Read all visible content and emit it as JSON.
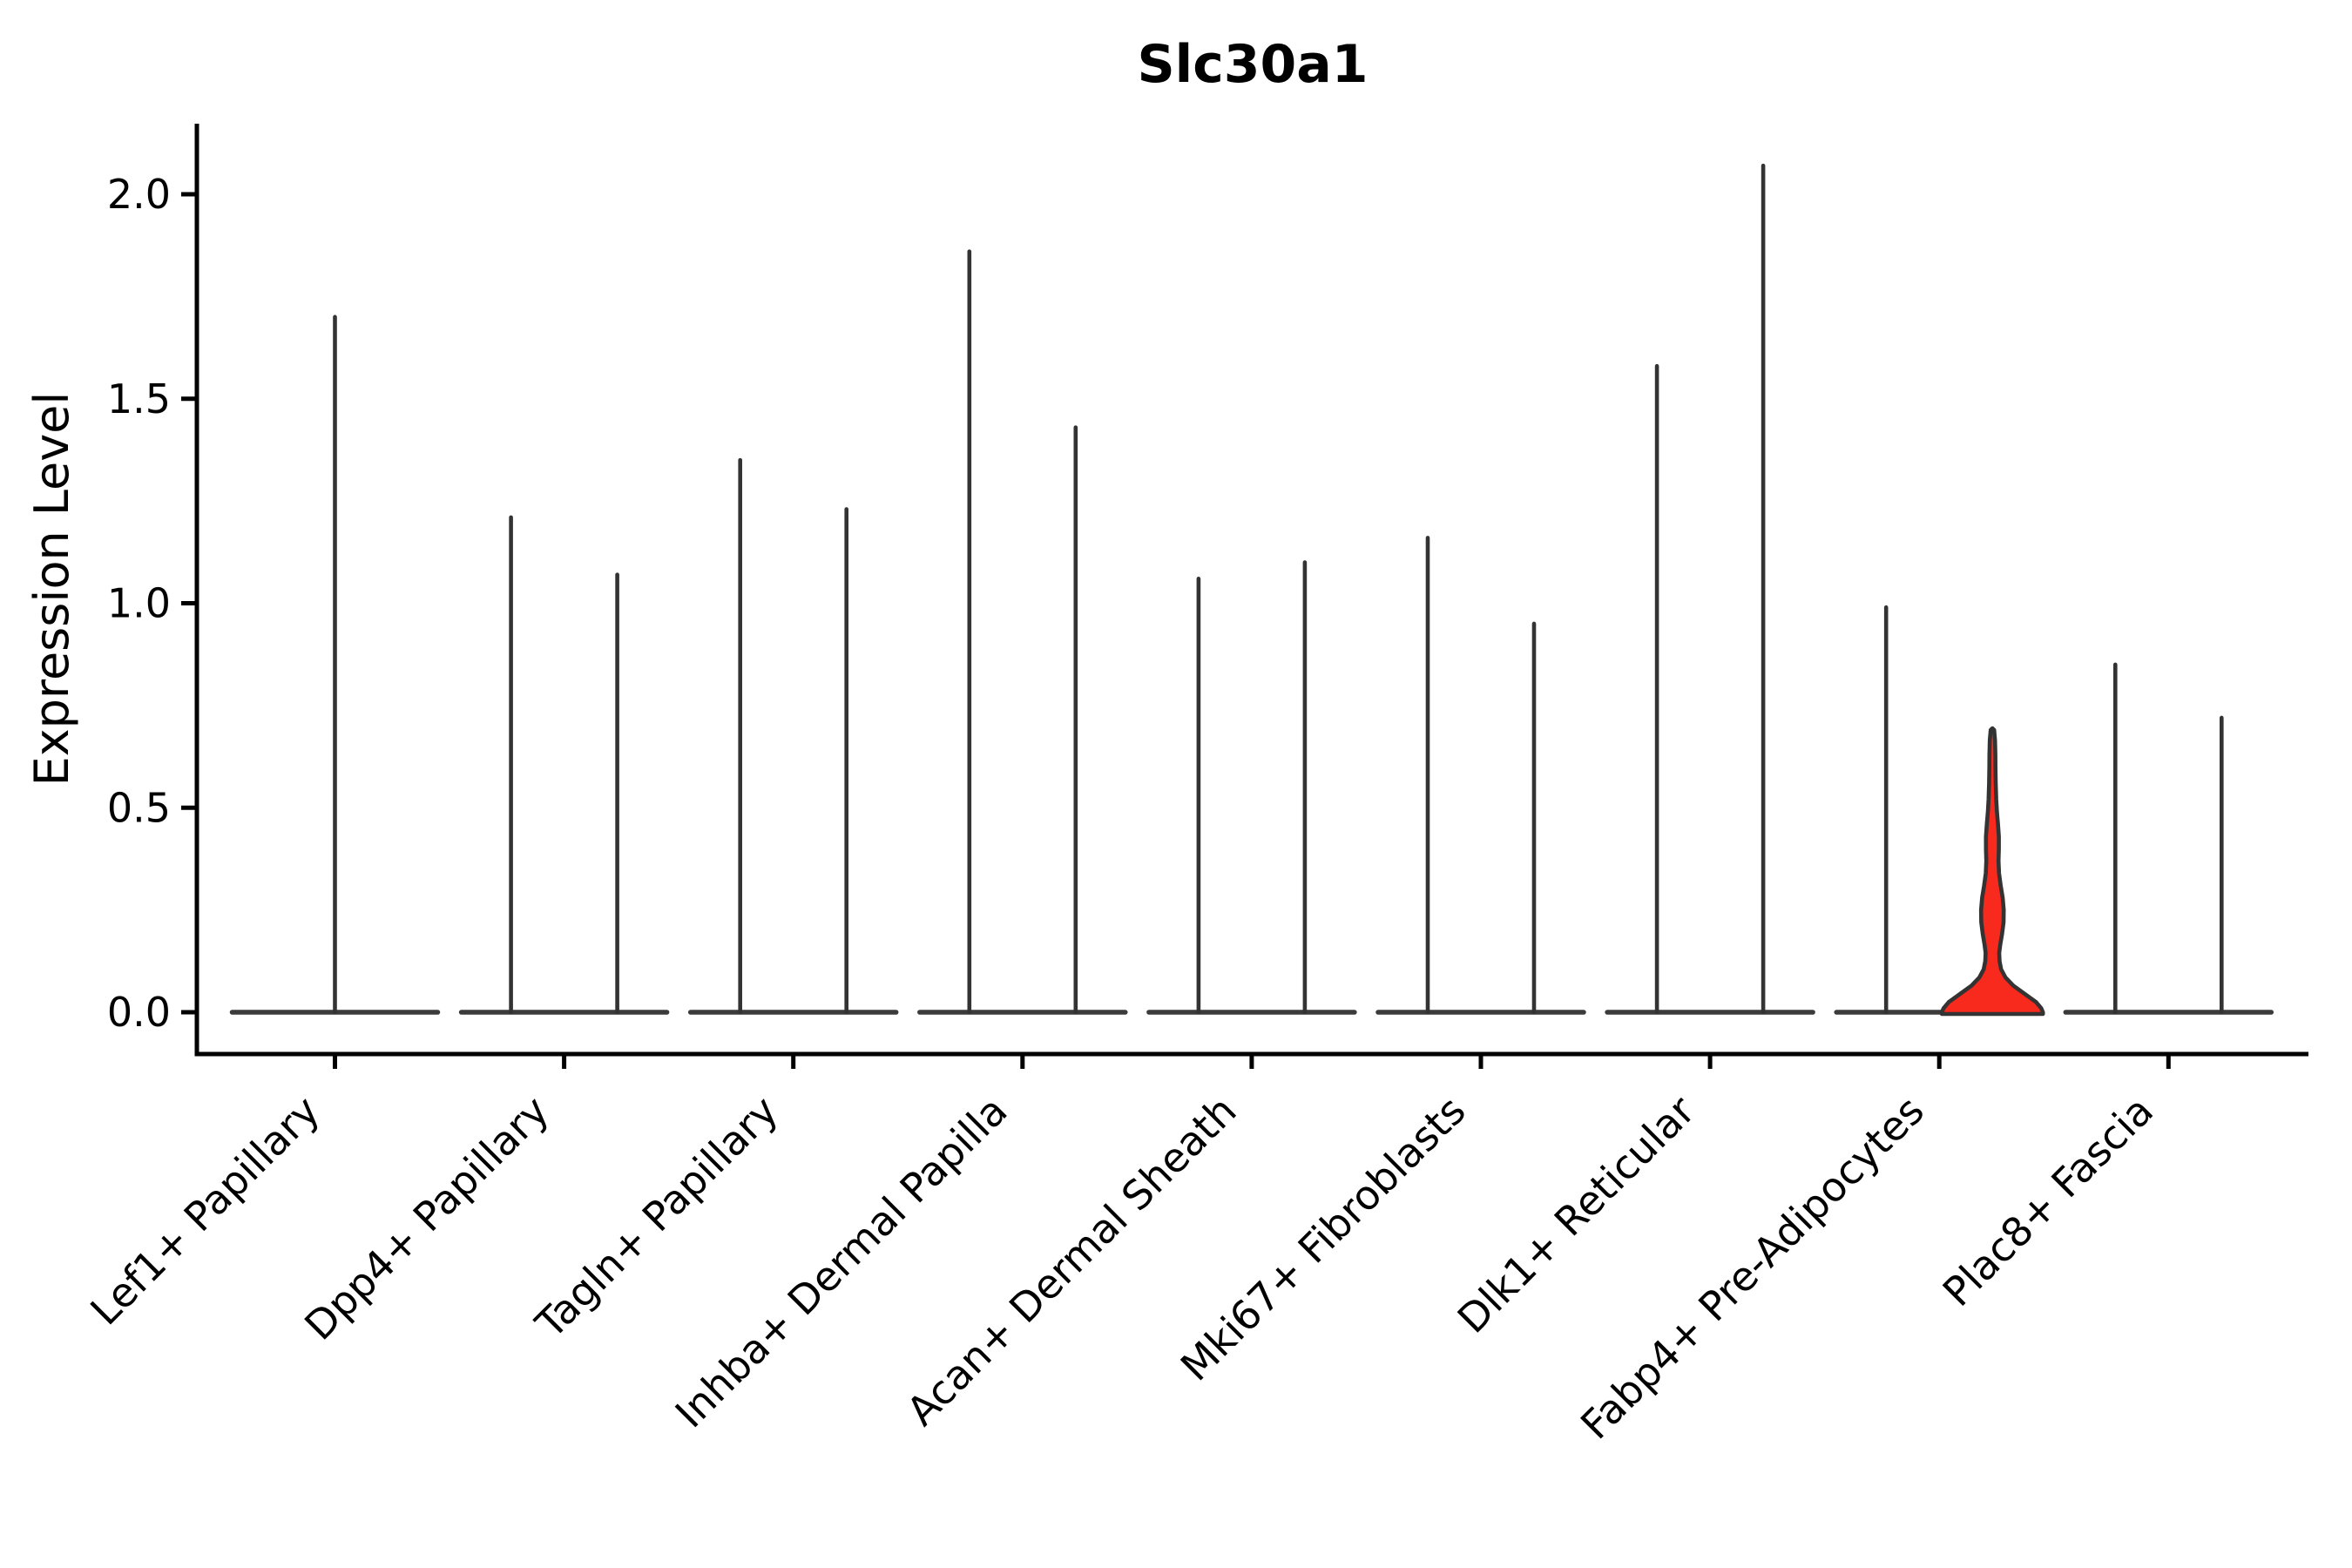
{
  "chart_data": {
    "type": "violin",
    "title": "Slc30a1",
    "ylabel": "Expression Level",
    "xlabel": "",
    "yticks": [
      "0.0",
      "0.5",
      "1.0",
      "1.5",
      "2.0"
    ],
    "ytick_values": [
      0.0,
      0.5,
      1.0,
      1.5,
      2.0
    ],
    "ylim": [
      -0.1,
      2.17
    ],
    "grid": false,
    "legend": "none",
    "colors": {
      "spike": "#333333",
      "baseline": "#3b3b3b",
      "axis": "#000000",
      "text": "#000000",
      "highlight_fill": "#F8291D",
      "highlight_outline": "#333333"
    },
    "categories": [
      {
        "label": "Lef1+ Papillary",
        "violins": [
          {
            "pos": "center",
            "peak": 1.7
          }
        ]
      },
      {
        "label": "Dpp4+ Papillary",
        "violins": [
          {
            "pos": "left",
            "peak": 1.21
          },
          {
            "pos": "right",
            "peak": 1.07
          }
        ]
      },
      {
        "label": "Tagln+ Papillary",
        "violins": [
          {
            "pos": "left",
            "peak": 1.35
          },
          {
            "pos": "right",
            "peak": 1.23
          }
        ]
      },
      {
        "label": "Inhba+ Dermal Papilla",
        "violins": [
          {
            "pos": "left",
            "peak": 1.86
          },
          {
            "pos": "right",
            "peak": 1.43
          }
        ]
      },
      {
        "label": "Acan+ Dermal Sheath",
        "violins": [
          {
            "pos": "left",
            "peak": 1.06
          },
          {
            "pos": "right",
            "peak": 1.1
          }
        ]
      },
      {
        "label": "Mki67+ Fibroblasts",
        "violins": [
          {
            "pos": "left",
            "peak": 1.16
          },
          {
            "pos": "right",
            "peak": 0.95
          }
        ]
      },
      {
        "label": "Dlk1+ Reticular",
        "violins": [
          {
            "pos": "left",
            "peak": 1.58
          },
          {
            "pos": "right",
            "peak": 2.07
          }
        ]
      },
      {
        "label": "Fabp4+ Pre-Adipocytes",
        "violins": [
          {
            "pos": "left",
            "peak": 0.99
          },
          {
            "pos": "right",
            "peak": 0.69,
            "filled": true,
            "profile": [
              [
                0.69,
                2.0
              ],
              [
                0.665,
                3.0
              ],
              [
                0.63,
                3.4
              ],
              [
                0.6,
                3.5
              ],
              [
                0.56,
                3.8
              ],
              [
                0.52,
                4.4
              ],
              [
                0.49,
                5.2
              ],
              [
                0.46,
                6.4
              ],
              [
                0.43,
                7.4
              ],
              [
                0.4,
                7.4
              ],
              [
                0.37,
                7.0
              ],
              [
                0.34,
                7.6
              ],
              [
                0.31,
                9.5
              ],
              [
                0.28,
                11.8
              ],
              [
                0.25,
                13.0
              ],
              [
                0.22,
                12.8
              ],
              [
                0.19,
                11.0
              ],
              [
                0.165,
                9.0
              ],
              [
                0.145,
                7.8
              ],
              [
                0.125,
                8.2
              ],
              [
                0.105,
                10.0
              ],
              [
                0.085,
                15.0
              ],
              [
                0.065,
                24.0
              ],
              [
                0.045,
                37.0
              ],
              [
                0.025,
                50.0
              ],
              [
                0.01,
                56.0
              ],
              [
                0.0,
                58.0
              ]
            ]
          }
        ]
      },
      {
        "label": "Plac8+ Fascia",
        "violins": [
          {
            "pos": "left",
            "peak": 0.85
          },
          {
            "pos": "right",
            "peak": 0.72
          }
        ]
      }
    ]
  }
}
